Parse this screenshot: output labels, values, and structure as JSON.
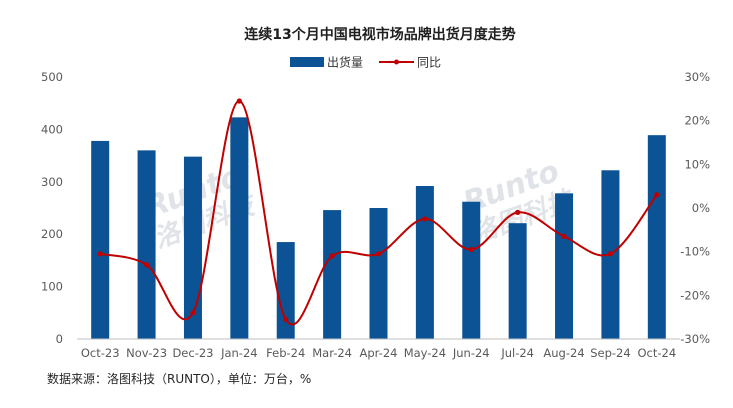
{
  "chart_data": {
    "type": "bar+line",
    "title": "连续13个月中国电视市场品牌出货月度走势",
    "categories": [
      "Oct-23",
      "Nov-23",
      "Dec-23",
      "Jan-24",
      "Feb-24",
      "Mar-24",
      "Apr-24",
      "May-24",
      "Jun-24",
      "Jul-24",
      "Aug-24",
      "Sep-24",
      "Oct-24"
    ],
    "series": [
      {
        "name": "出货量",
        "type": "bar",
        "axis": "left",
        "color": "#0b5394",
        "values": [
          378,
          360,
          348,
          423,
          185,
          246,
          250,
          292,
          262,
          221,
          278,
          322,
          389
        ]
      },
      {
        "name": "同比",
        "type": "line",
        "axis": "right",
        "unit": "%",
        "color": "#c00000",
        "values": [
          -10.5,
          -13,
          -24,
          24.5,
          -25.5,
          -11,
          -10.5,
          -2.5,
          -9.5,
          -1,
          -6.5,
          -10.5,
          3
        ]
      }
    ],
    "left_axis": {
      "min": 0,
      "max": 500,
      "step": 100,
      "ticks": [
        "0",
        "100",
        "200",
        "300",
        "400",
        "500"
      ]
    },
    "right_axis": {
      "min": -30,
      "max": 30,
      "step": 10,
      "ticks": [
        "-30%",
        "-20%",
        "-10%",
        "0%",
        "10%",
        "20%",
        "30%"
      ]
    },
    "legend": "top-center",
    "grid": false
  },
  "source_note": "数据来源：洛图科技（RUNTO），单位：万台，%",
  "watermark": {
    "brand": "Runto",
    "name": "洛图科技"
  }
}
